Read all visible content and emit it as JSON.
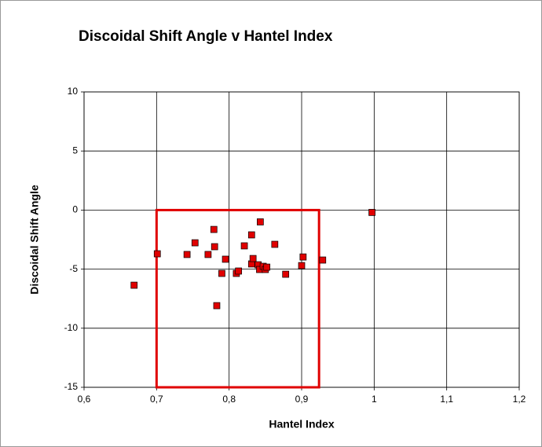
{
  "chart_data": {
    "type": "scatter",
    "title": "Discoidal Shift Angle v Hantel Index",
    "xlabel": "Hantel Index",
    "ylabel": "Discoidal Shift Angle",
    "series": [
      {
        "name": "Discoidal Shift Angle",
        "color": "#e00000",
        "x": [
          0.669,
          0.701,
          0.742,
          0.753,
          0.771,
          0.779,
          0.78,
          0.783,
          0.79,
          0.795,
          0.81,
          0.813,
          0.821,
          0.831,
          0.831,
          0.833,
          0.84,
          0.842,
          0.843,
          0.847,
          0.85,
          0.852,
          0.863,
          0.878,
          0.9,
          0.902,
          0.929,
          0.997
        ],
        "values": [
          -6.36,
          -3.7,
          -3.76,
          -2.77,
          -3.76,
          -1.64,
          -3.1,
          -8.09,
          -5.36,
          -4.16,
          -5.36,
          -5.16,
          -3.03,
          -2.1,
          -4.56,
          -4.1,
          -4.63,
          -5.03,
          -1.0,
          -4.76,
          -5.03,
          -4.83,
          -2.9,
          -5.43,
          -4.7,
          -3.97,
          -4.23,
          -0.2
        ]
      }
    ],
    "highlight_box": {
      "x": [
        0.7,
        0.924
      ],
      "y": [
        -15,
        0
      ],
      "color": "#e00000"
    },
    "xlim": [
      0.6,
      1.2
    ],
    "xticks": [
      {
        "value": 0.6,
        "label": "0,6"
      },
      {
        "value": 0.7,
        "label": "0,7"
      },
      {
        "value": 0.8,
        "label": "0,8"
      },
      {
        "value": 0.9,
        "label": "0,9"
      },
      1,
      {
        "value": 1.1,
        "label": "1,1"
      },
      {
        "value": 1.2,
        "label": "1,2"
      }
    ],
    "ylim": [
      -15,
      10
    ],
    "yticks": [
      10,
      5,
      0,
      -5,
      -10,
      -15
    ],
    "grid": true
  }
}
